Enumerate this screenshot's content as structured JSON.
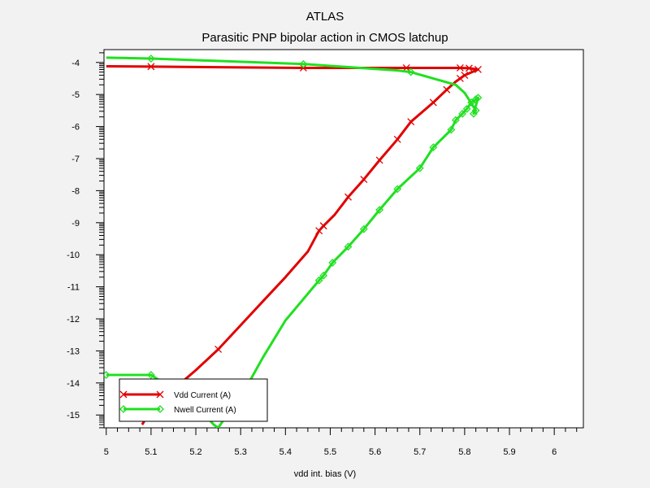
{
  "app_title": "ATLAS",
  "chart_data": {
    "type": "line",
    "title": "Parasitic PNP bipolar action in CMOS latchup",
    "xlabel": "vdd int. bias (V)",
    "ylabel": "",
    "xlim": [
      4.995,
      6.065
    ],
    "ylim": [
      -15.4,
      -3.6
    ],
    "x_ticks": [
      5,
      5.1,
      5.2,
      5.3,
      5.4,
      5.5,
      5.6,
      5.7,
      5.8,
      5.9,
      6
    ],
    "x_tick_labels": [
      "5",
      "5.1",
      "5.2",
      "5.3",
      "5.4",
      "5.5",
      "5.6",
      "5.7",
      "5.8",
      "5.9",
      "6"
    ],
    "y_ticks": [
      -4,
      -5,
      -6,
      -7,
      -8,
      -9,
      -10,
      -11,
      -12,
      -13,
      -14,
      -15
    ],
    "y_tick_labels": [
      "-4",
      "-5",
      "-6",
      "-7",
      "-8",
      "-9",
      "-10",
      "-11",
      "-12",
      "-13",
      "-14",
      "-15"
    ],
    "legend_position": "bottom-left",
    "series": [
      {
        "name": "Vdd Current (A)",
        "color": "#e00000",
        "marker": "x",
        "x": [
          5.08,
          5.1,
          5.15,
          5.2,
          5.25,
          5.3,
          5.35,
          5.4,
          5.45,
          5.475,
          5.485,
          5.51,
          5.54,
          5.575,
          5.61,
          5.65,
          5.68,
          5.73,
          5.76,
          5.78,
          5.79,
          5.8,
          5.83,
          5.81,
          5.79,
          5.68,
          5.67,
          5.44,
          5.1,
          5.0
        ],
        "y": [
          -15.3,
          -14.85,
          -14.2,
          -13.6,
          -12.95,
          -12.2,
          -11.45,
          -10.7,
          -9.9,
          -9.25,
          -9.1,
          -8.75,
          -8.2,
          -7.65,
          -7.05,
          -6.4,
          -5.85,
          -5.25,
          -4.85,
          -4.6,
          -4.5,
          -4.4,
          -4.22,
          -4.18,
          -4.17,
          -4.17,
          -4.17,
          -4.17,
          -4.13,
          -4.12
        ],
        "marker_indices": [
          1,
          4,
          9,
          10,
          12,
          13,
          14,
          15,
          16,
          17,
          18,
          20,
          21,
          22,
          23,
          24,
          26,
          27,
          28
        ]
      },
      {
        "name": "Nwell Current (A)",
        "color": "#20e020",
        "marker": "diamond",
        "x": [
          5.0,
          5.1,
          5.15,
          5.2,
          5.24,
          5.25,
          5.32,
          5.35,
          5.4,
          5.475,
          5.485,
          5.505,
          5.54,
          5.575,
          5.61,
          5.65,
          5.7,
          5.73,
          5.77,
          5.78,
          5.795,
          5.805,
          5.815,
          5.825,
          5.83,
          5.82,
          5.825,
          5.8,
          5.78,
          5.68,
          5.65,
          5.44,
          5.1,
          5.0
        ],
        "y": [
          -13.75,
          -13.75,
          -14.2,
          -14.7,
          -15.3,
          -15.4,
          -13.95,
          -13.2,
          -12.05,
          -10.8,
          -10.65,
          -10.25,
          -9.75,
          -9.2,
          -8.6,
          -7.95,
          -7.3,
          -6.65,
          -6.1,
          -5.8,
          -5.6,
          -5.45,
          -5.25,
          -5.15,
          -5.1,
          -5.6,
          -5.5,
          -4.95,
          -4.7,
          -4.3,
          -4.25,
          -4.05,
          -3.88,
          -3.85
        ],
        "marker_indices": [
          0,
          1,
          9,
          10,
          11,
          12,
          13,
          14,
          15,
          16,
          17,
          18,
          19,
          20,
          21,
          22,
          23,
          24,
          25,
          26,
          29,
          31,
          32
        ]
      }
    ]
  }
}
